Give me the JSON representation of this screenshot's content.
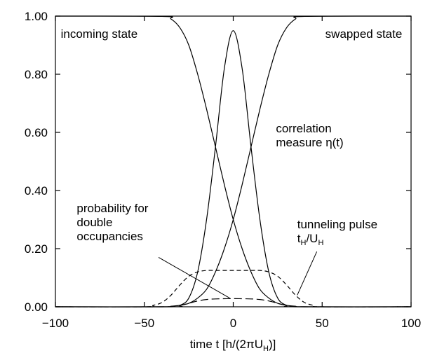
{
  "chart_data": {
    "type": "line",
    "title": "",
    "xlabel": "time t [h/(2πU_H)]",
    "ylabel": "",
    "xlim": [
      -100,
      100
    ],
    "ylim": [
      0,
      1.0
    ],
    "grid": false,
    "legend": "none",
    "x_ticks": [
      -100,
      -50,
      0,
      50,
      100
    ],
    "x_tick_labels": [
      "−100",
      "−50",
      "0",
      "50",
      "100"
    ],
    "y_ticks": [
      0,
      0.2,
      0.4,
      0.6,
      0.8,
      1.0
    ],
    "y_tick_labels": [
      "0.00",
      "0.20",
      "0.40",
      "0.60",
      "0.80",
      "1.00"
    ],
    "series": [
      {
        "style": "solid",
        "x": [
          -100,
          -40,
          -35,
          -30,
          -25,
          -20,
          -15,
          -10,
          -5,
          0,
          5,
          10,
          15,
          20,
          25,
          30,
          35,
          40,
          100
        ],
        "y": [
          1.0,
          0.999,
          0.99,
          0.96,
          0.9,
          0.8,
          0.68,
          0.55,
          0.42,
          0.3,
          0.2,
          0.12,
          0.06,
          0.03,
          0.012,
          0.005,
          0.002,
          0.0,
          0.0
        ]
      },
      {
        "style": "solid",
        "x": [
          -100,
          -40,
          -35,
          -30,
          -25,
          -20,
          -15,
          -10,
          -5,
          0,
          5,
          10,
          15,
          20,
          25,
          30,
          35,
          40,
          100
        ],
        "y": [
          0.0,
          0.0,
          0.002,
          0.005,
          0.012,
          0.03,
          0.06,
          0.12,
          0.2,
          0.3,
          0.42,
          0.55,
          0.68,
          0.8,
          0.9,
          0.96,
          0.99,
          0.999,
          1.0
        ]
      },
      {
        "style": "solid",
        "x": [
          -100,
          -35,
          -30,
          -25,
          -20,
          -15,
          -10,
          -5,
          0,
          5,
          10,
          15,
          20,
          25,
          30,
          35,
          100
        ],
        "y": [
          0.0,
          0.0,
          0.005,
          0.03,
          0.12,
          0.3,
          0.55,
          0.82,
          0.95,
          0.82,
          0.55,
          0.3,
          0.12,
          0.03,
          0.005,
          0.0,
          0.0
        ]
      },
      {
        "style": "dashed",
        "x": [
          -100,
          -50,
          -45,
          -40,
          -35,
          -30,
          -25,
          -20,
          -15,
          -10,
          0,
          10,
          15,
          20,
          25,
          30,
          35,
          40,
          45,
          50,
          100
        ],
        "y": [
          0.0,
          0.0,
          0.005,
          0.015,
          0.04,
          0.075,
          0.105,
          0.12,
          0.125,
          0.125,
          0.125,
          0.125,
          0.125,
          0.12,
          0.105,
          0.075,
          0.04,
          0.015,
          0.005,
          0.0,
          0.0
        ]
      },
      {
        "style": "long-dash",
        "x": [
          -100,
          -40,
          -30,
          -25,
          -20,
          -15,
          -10,
          0,
          10,
          15,
          20,
          25,
          30,
          40,
          100
        ],
        "y": [
          0.0,
          0.0,
          0.005,
          0.012,
          0.02,
          0.025,
          0.027,
          0.028,
          0.027,
          0.025,
          0.02,
          0.012,
          0.005,
          0.0,
          0.0
        ]
      }
    ],
    "annotations": [
      {
        "lines": [
          "incoming state"
        ],
        "x": -97,
        "y": 0.925
      },
      {
        "lines": [
          "swapped state"
        ],
        "x": 95,
        "y": 0.925,
        "anchor": "end"
      },
      {
        "lines": [
          "correlation",
          "measure η(t)"
        ],
        "x": 24,
        "y": 0.6
      },
      {
        "lines": [
          "probability for",
          "double",
          "occupancies"
        ],
        "x": -88,
        "y": 0.325
      },
      {
        "lines": [
          "tunneling pulse",
          "t_H/U_H"
        ],
        "x": 36,
        "y": 0.27
      }
    ],
    "leaders": [
      {
        "from": [
          -42,
          0.17
        ],
        "to": [
          -2,
          0.03
        ]
      },
      {
        "from": [
          47,
          0.19
        ],
        "to": [
          36,
          0.04
        ]
      }
    ]
  }
}
